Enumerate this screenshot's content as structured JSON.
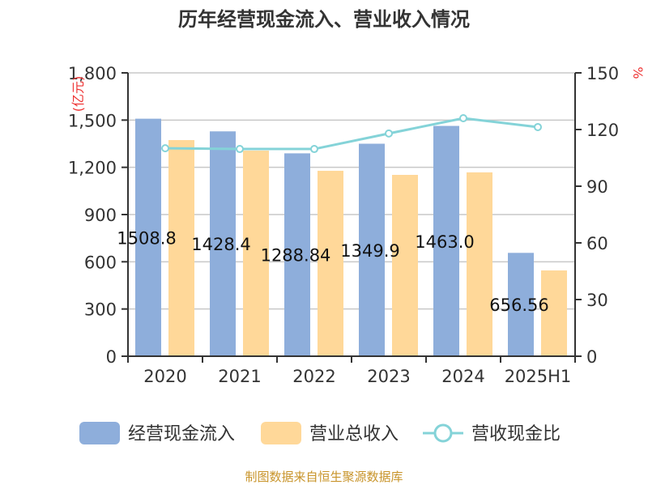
{
  "chart_data": {
    "type": "bar",
    "title": "历年经营现金流入、营业收入情况",
    "categories": [
      "2020",
      "2021",
      "2022",
      "2023",
      "2024",
      "2025H1"
    ],
    "left_axis": {
      "unit_label": "(亿元)",
      "ylim": [
        0,
        1800
      ],
      "ticks": [
        "0",
        "300",
        "600",
        "900",
        "1,200",
        "1,500",
        "1,800"
      ]
    },
    "right_axis": {
      "unit_label": "%",
      "ylim": [
        0,
        150
      ],
      "ticks": [
        "0",
        "30",
        "60",
        "90",
        "120",
        "150"
      ]
    },
    "grid": true,
    "legend_placement": "bottom",
    "series": [
      {
        "name": "经营现金流入",
        "kind": "bar",
        "axis": "left",
        "color": "#8eaedb",
        "values": [
          1508.8,
          1428.4,
          1288.84,
          1349.9,
          1463.0,
          656.56
        ],
        "labels": [
          "1508.8",
          "1428.4",
          "1288.84",
          "1349.9",
          "1463.0",
          "656.56"
        ]
      },
      {
        "name": "营业总收入",
        "kind": "bar",
        "axis": "left",
        "color": "#ffd899",
        "values": [
          1373,
          1306,
          1178,
          1152,
          1168,
          545
        ]
      },
      {
        "name": "营收现金比",
        "kind": "line",
        "axis": "right",
        "color": "#84d3d8",
        "values": [
          110.1,
          109.7,
          109.7,
          117.9,
          126.0,
          121.3
        ]
      }
    ]
  },
  "footer": {
    "source": "制图数据来自恒生聚源数据库"
  }
}
